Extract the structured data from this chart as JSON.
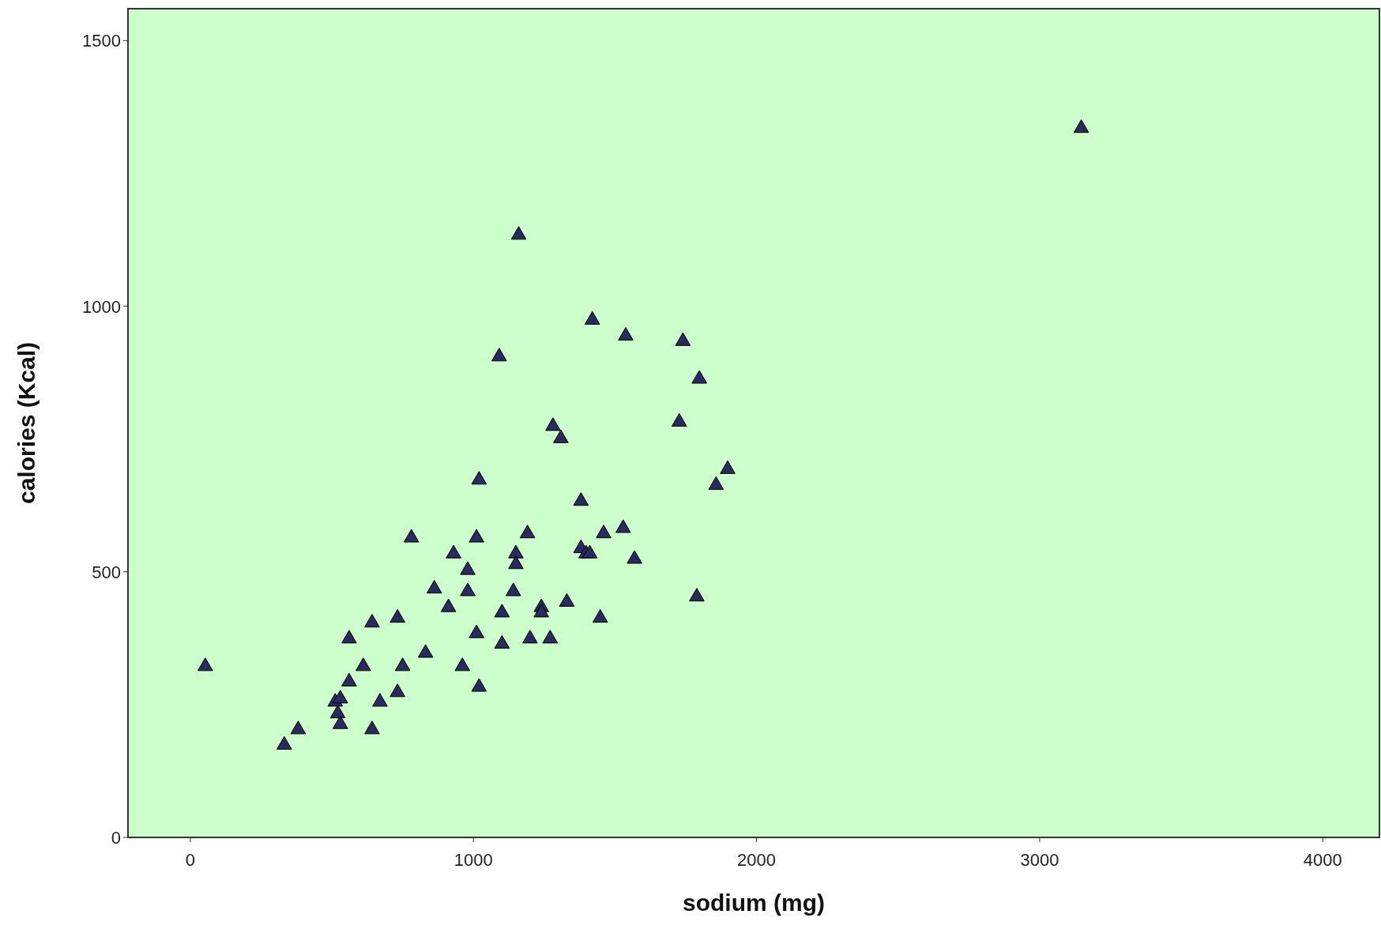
{
  "chart_data": {
    "type": "scatter",
    "xlabel": "sodium (mg)",
    "ylabel": "calories (Kcal)",
    "xlim": [
      -220,
      4200
    ],
    "ylim": [
      0,
      1560
    ],
    "xticks": [
      0,
      1000,
      2000,
      3000,
      4000
    ],
    "yticks": [
      0,
      500,
      1000,
      1500
    ],
    "grid": false,
    "marker": "triangle",
    "series": [
      {
        "color": "#2a2a5e",
        "x": [
          53,
          332,
          381,
          512,
          530,
          521,
          530,
          561,
          561,
          611,
          642,
          642,
          670,
          732,
          732,
          750,
          781,
          831,
          862,
          912,
          930,
          961,
          980,
          980,
          1011,
          1011,
          1020,
          1020,
          1091,
          1101,
          1101,
          1141,
          1150,
          1150,
          1160,
          1191,
          1200,
          1240,
          1240,
          1271,
          1281,
          1309,
          1330,
          1380,
          1380,
          1398,
          1411,
          1420,
          1448,
          1460,
          1529,
          1538,
          1569,
          1727,
          1740,
          1789,
          1798,
          1857,
          1898,
          3147
        ],
        "values": [
          322,
          174,
          203,
          255,
          261,
          233,
          213,
          293,
          374,
          322,
          404,
          203,
          255,
          413,
          273,
          322,
          564,
          347,
          468,
          433,
          534,
          322,
          503,
          463,
          384,
          564,
          673,
          283,
          905,
          423,
          364,
          463,
          534,
          514,
          1134,
          572,
          374,
          433,
          423,
          374,
          774,
          751,
          443,
          633,
          544,
          534,
          534,
          974,
          413,
          572,
          582,
          944,
          524,
          782,
          934,
          453,
          863,
          663,
          693,
          1335
        ]
      }
    ]
  }
}
